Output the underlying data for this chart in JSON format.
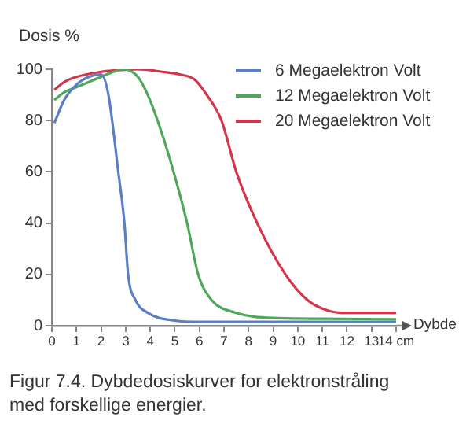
{
  "chart_data": {
    "type": "line",
    "ylabel": "Dosis %",
    "xlabel": "Dybde",
    "annotations": [
      "Figur 7.4. Dybdedosiskurver for elektronstråling med forskellige energier."
    ],
    "xlim": [
      0,
      14
    ],
    "xticks": [
      0,
      1,
      2,
      3,
      4,
      5,
      6,
      7,
      8,
      9,
      10,
      11,
      12,
      13,
      {
        "value": 14,
        "label": "14 cm"
      }
    ],
    "ylim": [
      0,
      100
    ],
    "yticks": [
      0,
      20,
      40,
      60,
      80,
      100
    ],
    "grid": false,
    "legend": "top right",
    "marker": "none",
    "line_style": "solid",
    "series": [
      {
        "name": "6 Megaelektron Volt",
        "color": "#5b7fc4",
        "x": [
          0.1,
          0.5,
          1,
          1.5,
          2,
          2.3,
          2.7,
          2.95,
          3.1,
          3.4,
          3.9,
          5,
          6,
          8,
          10,
          14
        ],
        "values": [
          79,
          88,
          94,
          97,
          98,
          90,
          60,
          40,
          20,
          10,
          5,
          2,
          1.5,
          1.5,
          1.5,
          1.5
        ]
      },
      {
        "name": "12 Megaelektron Volt",
        "color": "#4fa85a",
        "x": [
          0.1,
          0.5,
          1,
          1.5,
          2,
          2.5,
          2.9,
          3.5,
          3.9,
          4.3,
          4.8,
          5.5,
          5.95,
          6.5,
          7.5,
          9,
          11,
          14
        ],
        "values": [
          88,
          91,
          93,
          95,
          97,
          99,
          100,
          97,
          90,
          80,
          65,
          40,
          20,
          10,
          5,
          3,
          2.7,
          2.5
        ]
      },
      {
        "name": "20 Megaelektron Volt",
        "color": "#d4354a",
        "x": [
          0.1,
          0.5,
          1,
          2,
          2.5,
          3.5,
          4.5,
          5.2,
          5.8,
          6.3,
          6.9,
          7.5,
          8.35,
          9.5,
          10.4,
          11.2,
          12,
          14
        ],
        "values": [
          92,
          95,
          97,
          99,
          99.5,
          100,
          99,
          98,
          96,
          90,
          80,
          60,
          40,
          20,
          10,
          6,
          5,
          5
        ]
      }
    ]
  }
}
